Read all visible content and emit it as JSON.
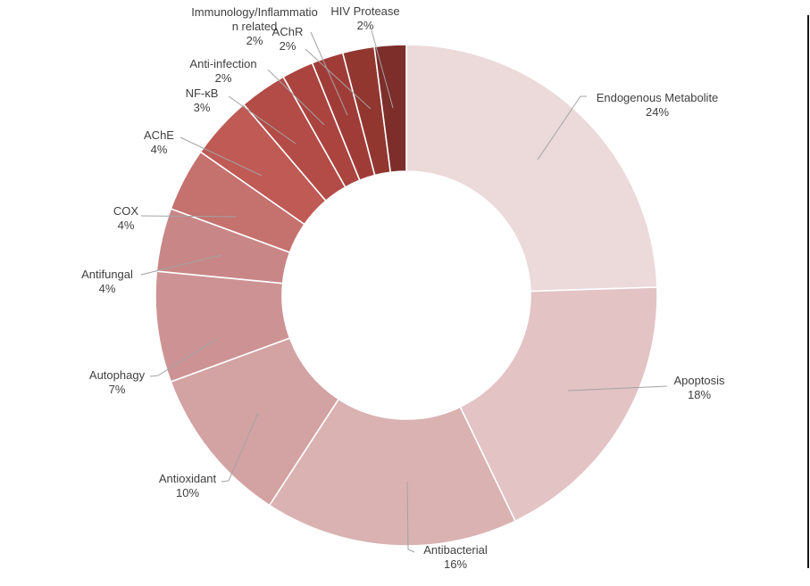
{
  "page": {
    "background": "#ffffff",
    "edge_rule_color": "#161616"
  },
  "chart_data": {
    "type": "pie",
    "subtype": "donut",
    "title": "",
    "legend_position": "none",
    "labels_style": "category name + percent with leader lines",
    "separator_color": "#ffffff",
    "leader_line_color": "#a3a3a3",
    "label_text_color": "#404040",
    "series": [
      {
        "label": "Endogenous Metabolite",
        "value": 24,
        "pct": "24%",
        "color": "#ecd9da",
        "label_lines": [
          "Endogenous Metabolite",
          "24%"
        ]
      },
      {
        "label": "Apoptosis",
        "value": 18,
        "pct": "18%",
        "color": "#e3c3c4",
        "label_lines": [
          "Apoptosis",
          "18%"
        ]
      },
      {
        "label": "Antibacterial",
        "value": 16,
        "pct": "16%",
        "color": "#dab2b2",
        "label_lines": [
          "Antibacterial",
          "16%"
        ]
      },
      {
        "label": "Antioxidant",
        "value": 10,
        "pct": "10%",
        "color": "#d3a2a2",
        "label_lines": [
          "Antioxidant",
          "10%"
        ]
      },
      {
        "label": "Autophagy",
        "value": 7,
        "pct": "7%",
        "color": "#cd9394",
        "label_lines": [
          "Autophagy",
          "7%"
        ]
      },
      {
        "label": "Antifungal",
        "value": 4,
        "pct": "4%",
        "color": "#c98686",
        "label_lines": [
          "Antifungal",
          "4%"
        ]
      },
      {
        "label": "COX",
        "value": 4,
        "pct": "4%",
        "color": "#c5716e",
        "label_lines": [
          "COX",
          "4%"
        ]
      },
      {
        "label": "AChE",
        "value": 4,
        "pct": "4%",
        "color": "#bf5a55",
        "label_lines": [
          "AChE",
          "4%"
        ]
      },
      {
        "label": "NF-κB",
        "value": 3,
        "pct": "3%",
        "color": "#b34b46",
        "label_lines": [
          "NF-κB",
          "3%"
        ]
      },
      {
        "label": "Anti-infection",
        "value": 2,
        "pct": "2%",
        "color": "#ab433f",
        "label_lines": [
          "Anti-infection",
          "2%"
        ]
      },
      {
        "label": "Immunology/Inflammation related",
        "value": 2,
        "pct": "2%",
        "color": "#a03c38",
        "label_lines": [
          "Immunology/Inflammatio",
          "n related",
          "2%"
        ]
      },
      {
        "label": "AChR",
        "value": 2,
        "pct": "2%",
        "color": "#923630",
        "label_lines": [
          "AChR",
          "2%"
        ]
      },
      {
        "label": "HIV Protease",
        "value": 2,
        "pct": "2%",
        "color": "#7d2e2a",
        "label_lines": [
          "HIV Protease",
          "2%"
        ]
      }
    ]
  }
}
